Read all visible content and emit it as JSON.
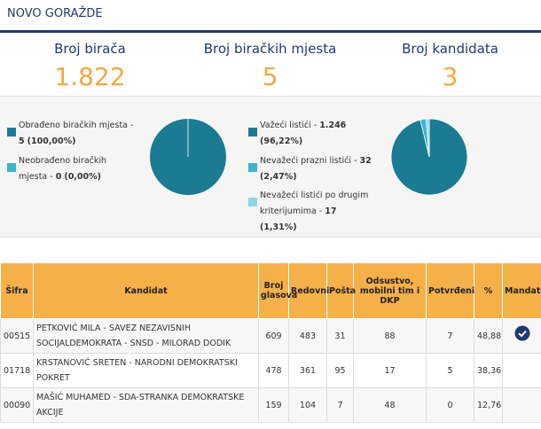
{
  "header": {
    "title": "NOVO GORAŽDE"
  },
  "stats": [
    {
      "label": "Broj birača",
      "value": "1.822"
    },
    {
      "label": "Broj biračkih mjesta",
      "value": "5"
    },
    {
      "label": "Broj kandidata",
      "value": "3"
    }
  ],
  "pies": [
    {
      "items": [
        {
          "label": "Obrađeno biračkih mjesta - ",
          "count": "5",
          "value": 100,
          "value_label": "(100,00%)",
          "color": "#1b7b93"
        },
        {
          "label": "Neobrađeno biračkih mjesta - ",
          "count": "0",
          "value": 0,
          "value_label": "(0,00%)",
          "color": "#3db3d1"
        }
      ]
    },
    {
      "items": [
        {
          "label": "Važeći listići - ",
          "count": "1.246",
          "value": 96.22,
          "value_label": "(96,22%)",
          "color": "#1b7b93"
        },
        {
          "label": "Nevažeći prazni listići - ",
          "count": "32",
          "value": 2.47,
          "value_label": "(2,47%)",
          "color": "#3db3d1"
        },
        {
          "label": "Nevažeći listići po drugim kriterijumima - ",
          "count": "17",
          "value": 1.31,
          "value_label": "(1,31%)",
          "color": "#8fd4e8"
        }
      ]
    }
  ],
  "table": {
    "headers": [
      "Šifra",
      "Kandidat",
      "Broj glasova",
      "Redovni",
      "Pošta",
      "Odsustvo, mobilni tim i DKP",
      "Potvrđeni",
      "%",
      "Mandat"
    ],
    "rows": [
      {
        "cells": [
          "00515",
          "PETKOVIĆ MILA - SAVEZ NEZAVISNIH SOCIJALDEMOKRATA - SNSD - MILORAD DODIK",
          "609",
          "483",
          "31",
          "88",
          "7",
          "48,88"
        ],
        "mandat": true
      },
      {
        "cells": [
          "01718",
          "KRSTANOVIĆ SRETEN - NARODNI DEMOKRATSKI POKRET",
          "478",
          "361",
          "95",
          "17",
          "5",
          "38,36"
        ],
        "mandat": false
      },
      {
        "cells": [
          "00090",
          "MAŠIĆ MUHAMED - SDA-STRANKA DEMOKRATSKE AKCIJE",
          "159",
          "104",
          "7",
          "48",
          "0",
          "12,76"
        ],
        "mandat": false
      }
    ]
  }
}
